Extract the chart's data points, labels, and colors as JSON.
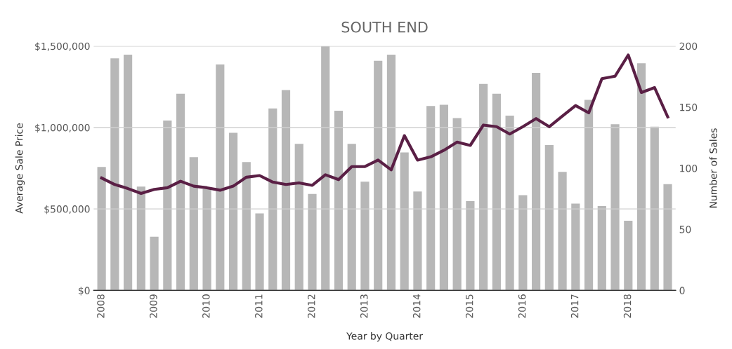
{
  "chart_data": {
    "type": "bar",
    "title": "SOUTH END",
    "xlabel": "Year by Quarter",
    "ylabel": "Average Sale Price",
    "y2label": "Number of Sales",
    "categories": [
      "2008",
      null,
      null,
      null,
      "2009",
      null,
      null,
      null,
      "2010",
      null,
      null,
      null,
      "2011",
      null,
      null,
      null,
      "2012",
      null,
      null,
      null,
      "2013",
      null,
      null,
      null,
      "2014",
      null,
      null,
      null,
      "2015",
      null,
      null,
      null,
      "2016",
      null,
      null,
      null,
      "2017",
      null,
      null,
      null,
      "2018",
      null,
      null,
      null
    ],
    "series": [
      {
        "axis": "y2",
        "color": "#b7b7b7",
        "values": [
          101,
          190,
          193,
          85,
          44,
          139,
          161,
          109,
          83,
          185,
          129,
          105,
          63,
          149,
          164,
          120,
          79,
          200,
          147,
          120,
          89,
          188,
          193,
          113,
          81,
          151,
          152,
          141,
          73,
          169,
          161,
          143,
          78,
          178,
          119,
          97,
          71,
          156,
          69,
          136,
          57,
          186,
          134,
          87
        ]
      },
      {
        "type": "line",
        "axis": "y",
        "color": "#5a1f45",
        "values": [
          690000,
          650000,
          625000,
          595000,
          620000,
          630000,
          670000,
          640000,
          630000,
          615000,
          640000,
          695000,
          705000,
          665000,
          650000,
          660000,
          645000,
          710000,
          680000,
          760000,
          760000,
          800000,
          740000,
          950000,
          800000,
          820000,
          860000,
          910000,
          890000,
          1015000,
          1005000,
          960000,
          1005000,
          1055000,
          1005000,
          1070000,
          1135000,
          1090000,
          1300000,
          1315000,
          1445000,
          1215000,
          1245000,
          1065000
        ]
      }
    ],
    "ylim": [
      0,
      1500000
    ],
    "yticks": [
      {
        "value": 0,
        "label": "$0"
      },
      {
        "value": 500000,
        "label": "$500,000"
      },
      {
        "value": 1000000,
        "label": "$1,000,000"
      },
      {
        "value": 1500000,
        "label": "$1,500,000"
      }
    ],
    "y2lim": [
      0,
      200
    ],
    "y2ticks": [
      0,
      50,
      100,
      150,
      200
    ],
    "grid": "y",
    "legend": false,
    "marker": "none",
    "line_style": "solid"
  }
}
